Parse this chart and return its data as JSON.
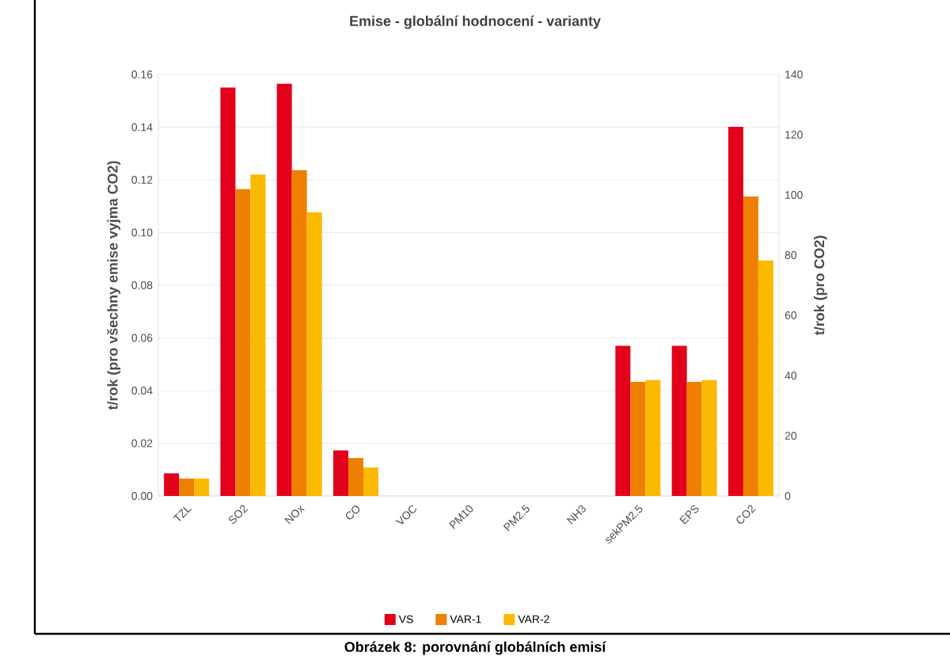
{
  "chart_data": {
    "type": "bar",
    "title": "Emise - globální hodnocení - varianty",
    "categories": [
      "TZL",
      "SO2",
      "NOx",
      "CO",
      "VOC",
      "PM10",
      "PM2.5",
      "NH3",
      "sekPM2.5",
      "EPS",
      "CO2"
    ],
    "series": [
      {
        "name": "VS",
        "color": "#e2001a",
        "values": [
          0.0086,
          0.155,
          0.1565,
          0.0173,
          0,
          0,
          0,
          0,
          0.057,
          0.057,
          null
        ]
      },
      {
        "name": "VAR-1",
        "color": "#ee7f00",
        "values": [
          0.0066,
          0.1165,
          0.1237,
          0.0144,
          0,
          0,
          0,
          0,
          0.0433,
          0.0433,
          null
        ]
      },
      {
        "name": "VAR-2",
        "color": "#fbb900",
        "values": [
          0.0066,
          0.122,
          0.1077,
          0.0108,
          0,
          0,
          0,
          0,
          0.044,
          0.044,
          null
        ]
      },
      {
        "color": "#e2001a",
        "axis": "y2",
        "values": [
          null,
          null,
          null,
          null,
          null,
          null,
          null,
          null,
          null,
          null,
          122.6
        ]
      },
      {
        "color": "#ee7f00",
        "axis": "y2",
        "values": [
          null,
          null,
          null,
          null,
          null,
          null,
          null,
          null,
          null,
          null,
          99.5
        ]
      },
      {
        "color": "#fbb900",
        "axis": "y2",
        "values": [
          null,
          null,
          null,
          null,
          null,
          null,
          null,
          null,
          null,
          null,
          78.2
        ]
      }
    ],
    "ylabel": "t/rok (pro všechny emise vyjma CO2)",
    "y2label": "t/rok (pro CO2)",
    "ylim": [
      0,
      0.16
    ],
    "yticks": [
      {
        "value": 0,
        "label": "0.00"
      },
      {
        "value": 0.02,
        "label": "0.02"
      },
      {
        "value": 0.04,
        "label": "0.04"
      },
      {
        "value": 0.06,
        "label": "0.06"
      },
      {
        "value": 0.08,
        "label": "0.08"
      },
      {
        "value": 0.1,
        "label": "0.10"
      },
      {
        "value": 0.12,
        "label": "0.12"
      },
      {
        "value": 0.14,
        "label": "0.14"
      },
      {
        "value": 0.16,
        "label": "0.16"
      }
    ],
    "y2lim": [
      0,
      140
    ],
    "y2ticks": [
      0,
      20,
      40,
      60,
      80,
      100,
      120,
      140
    ],
    "grid": "y",
    "legend": "bottom",
    "annotations": [
      "Obrázek 8: porovnání globálních emisí"
    ]
  }
}
